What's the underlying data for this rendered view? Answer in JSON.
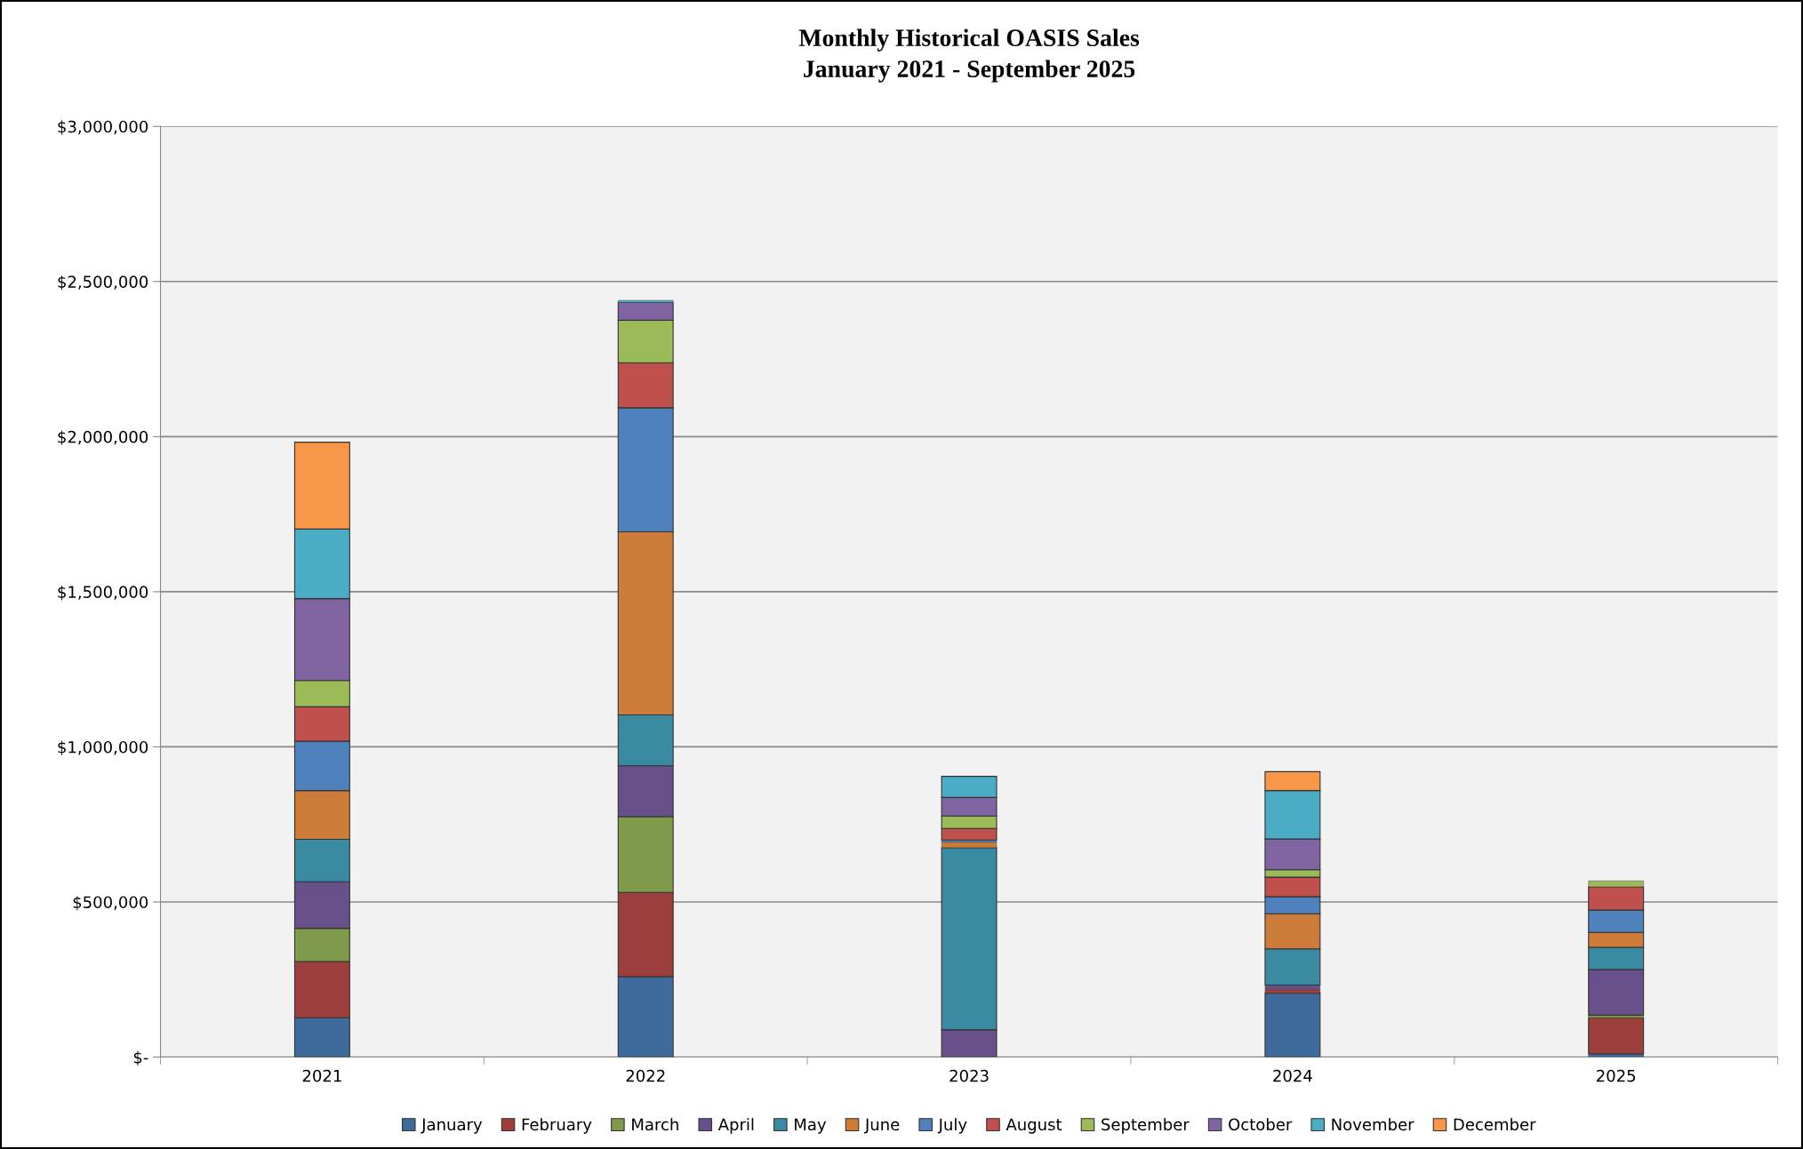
{
  "chart_data": {
    "type": "bar",
    "stacked": true,
    "title": "Monthly Historical OASIS Sales\nJanuary 2021 - September 2025",
    "categories": [
      "2021",
      "2022",
      "2023",
      "2024",
      "2025"
    ],
    "series": [
      {
        "name": "January",
        "color": "#3f6a9c",
        "values": [
          127000,
          259000,
          0,
          206000,
          10000
        ]
      },
      {
        "name": "February",
        "color": "#9c3f3c",
        "values": [
          181000,
          272000,
          0,
          12000,
          117000
        ]
      },
      {
        "name": "March",
        "color": "#7f9a4a",
        "values": [
          107000,
          244000,
          0,
          0,
          8000
        ]
      },
      {
        "name": "April",
        "color": "#68508a",
        "values": [
          150000,
          164000,
          88000,
          14000,
          147000
        ]
      },
      {
        "name": "May",
        "color": "#3a8ba2",
        "values": [
          137000,
          164000,
          587000,
          117000,
          72000
        ]
      },
      {
        "name": "June",
        "color": "#cc7b38",
        "values": [
          157000,
          590000,
          18000,
          113000,
          48000
        ]
      },
      {
        "name": "July",
        "color": "#4f81bd",
        "values": [
          159000,
          400000,
          7000,
          55000,
          72000
        ]
      },
      {
        "name": "August",
        "color": "#c0504d",
        "values": [
          111000,
          145000,
          37000,
          63000,
          75000
        ]
      },
      {
        "name": "September",
        "color": "#9bbb59",
        "values": [
          85000,
          137000,
          40000,
          24000,
          19000
        ]
      },
      {
        "name": "October",
        "color": "#8064a2",
        "values": [
          264000,
          57000,
          60000,
          99000,
          null
        ]
      },
      {
        "name": "November",
        "color": "#4bacc6",
        "values": [
          224000,
          7000,
          68000,
          156000,
          null
        ]
      },
      {
        "name": "December",
        "color": "#f79646",
        "values": [
          280000,
          0,
          0,
          61000,
          null
        ]
      }
    ],
    "ylim": [
      0,
      3000000
    ],
    "yticks": [
      {
        "value": 0,
        "label": "$-"
      },
      {
        "value": 500000,
        "label": "$500,000"
      },
      {
        "value": 1000000,
        "label": "$1,000,000"
      },
      {
        "value": 1500000,
        "label": "$1,500,000"
      },
      {
        "value": 2000000,
        "label": "$2,000,000"
      },
      {
        "value": 2500000,
        "label": "$2,500,000"
      },
      {
        "value": 3000000,
        "label": "$3,000,000"
      }
    ],
    "grid": "y",
    "legend": "bottom"
  }
}
